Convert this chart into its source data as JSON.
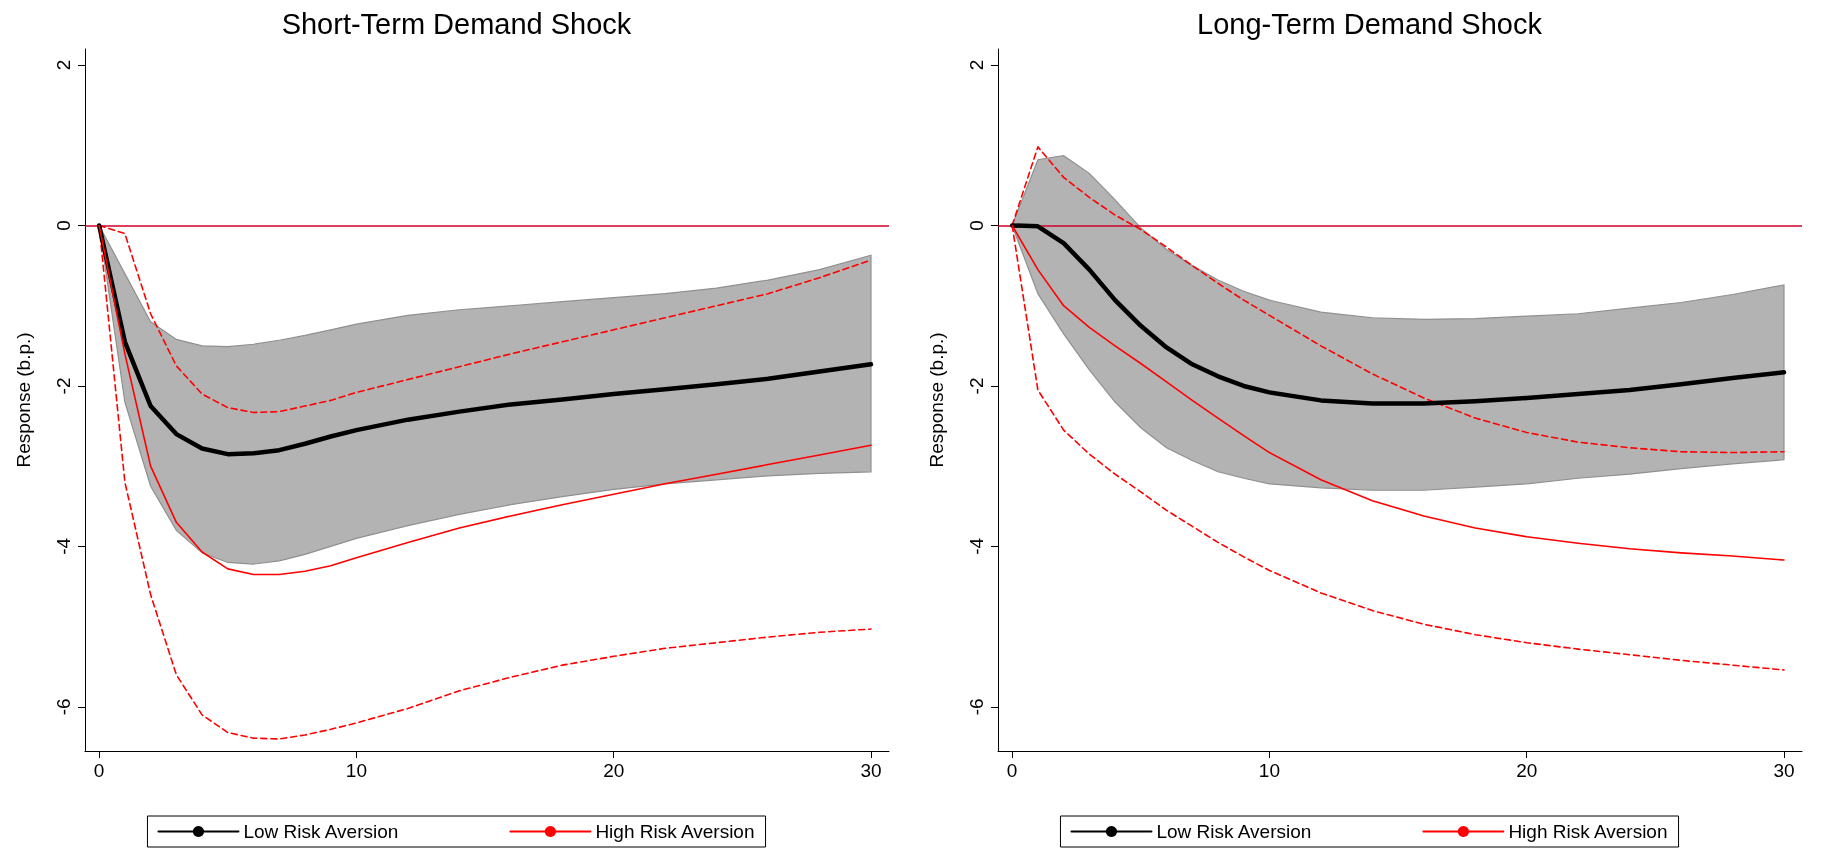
{
  "chart_data": [
    {
      "type": "line",
      "title": "Short-Term Demand Shock",
      "ylabel": "Response (b.p.)",
      "x": [
        0,
        1,
        2,
        3,
        4,
        5,
        6,
        7,
        8,
        9,
        10,
        12,
        14,
        16,
        18,
        20,
        22,
        24,
        26,
        28,
        30
      ],
      "xlim": [
        -0.55,
        30.7
      ],
      "xticks": [
        0,
        10,
        20,
        30
      ],
      "ylim": [
        -6.55,
        2.2
      ],
      "yticks": [
        -6,
        -4,
        -2,
        0,
        2
      ],
      "grid": false,
      "legend": "bottom",
      "marker": "none",
      "line_style": "solid",
      "ref_lines": [
        {
          "axis": "y",
          "value": 0,
          "color": "#d0002a"
        }
      ],
      "series": [
        {
          "name": "Low Risk Aversion",
          "color": "#000000",
          "values": [
            0,
            -1.45,
            -2.25,
            -2.6,
            -2.78,
            -2.85,
            -2.84,
            -2.8,
            -2.72,
            -2.63,
            -2.55,
            -2.42,
            -2.32,
            -2.23,
            -2.17,
            -2.1,
            -2.04,
            -1.98,
            -1.91,
            -1.82,
            -1.73
          ],
          "lower": [
            0,
            -2.2,
            -3.25,
            -3.8,
            -4.08,
            -4.2,
            -4.22,
            -4.18,
            -4.1,
            -4.0,
            -3.9,
            -3.74,
            -3.6,
            -3.48,
            -3.38,
            -3.29,
            -3.22,
            -3.17,
            -3.12,
            -3.09,
            -3.07
          ],
          "upper": [
            0,
            -0.6,
            -1.2,
            -1.42,
            -1.5,
            -1.51,
            -1.48,
            -1.43,
            -1.37,
            -1.3,
            -1.23,
            -1.12,
            -1.05,
            -1.0,
            -0.95,
            -0.9,
            -0.85,
            -0.78,
            -0.68,
            -0.55,
            -0.37
          ]
        },
        {
          "name": "High Risk Aversion",
          "color": "#ff0000",
          "values": [
            0,
            -1.6,
            -3.0,
            -3.7,
            -4.07,
            -4.28,
            -4.35,
            -4.35,
            -4.31,
            -4.24,
            -4.14,
            -3.95,
            -3.77,
            -3.62,
            -3.48,
            -3.35,
            -3.22,
            -3.1,
            -2.98,
            -2.86,
            -2.74
          ]
        },
        {
          "color": "#ff0000",
          "line_style": "dashed",
          "values": [
            0,
            -0.1,
            -1.1,
            -1.75,
            -2.1,
            -2.27,
            -2.33,
            -2.32,
            -2.25,
            -2.18,
            -2.08,
            -1.92,
            -1.76,
            -1.6,
            -1.45,
            -1.3,
            -1.15,
            -1.0,
            -0.85,
            -0.65,
            -0.43
          ]
        },
        {
          "color": "#ff0000",
          "line_style": "dashed",
          "values": [
            0,
            -3.2,
            -4.6,
            -5.6,
            -6.1,
            -6.32,
            -6.39,
            -6.4,
            -6.35,
            -6.28,
            -6.2,
            -6.02,
            -5.8,
            -5.63,
            -5.48,
            -5.37,
            -5.27,
            -5.2,
            -5.13,
            -5.07,
            -5.03
          ]
        }
      ]
    },
    {
      "type": "line",
      "title": "Long-Term Demand Shock",
      "ylabel": "Response (b.p.)",
      "x": [
        0,
        1,
        2,
        3,
        4,
        5,
        6,
        7,
        8,
        9,
        10,
        12,
        14,
        16,
        18,
        20,
        22,
        24,
        26,
        28,
        30
      ],
      "xlim": [
        -0.55,
        30.7
      ],
      "xticks": [
        0,
        10,
        20,
        30
      ],
      "ylim": [
        -6.55,
        2.2
      ],
      "yticks": [
        -6,
        -4,
        -2,
        0,
        2
      ],
      "grid": false,
      "legend": "bottom",
      "marker": "none",
      "line_style": "solid",
      "ref_lines": [
        {
          "axis": "y",
          "value": 0,
          "color": "#d0002a"
        }
      ],
      "series": [
        {
          "name": "Low Risk Aversion",
          "color": "#000000",
          "values": [
            0,
            -0.01,
            -0.22,
            -0.55,
            -0.93,
            -1.25,
            -1.52,
            -1.73,
            -1.88,
            -2.0,
            -2.08,
            -2.18,
            -2.22,
            -2.22,
            -2.19,
            -2.15,
            -2.1,
            -2.05,
            -1.98,
            -1.9,
            -1.83
          ],
          "lower": [
            0,
            -0.85,
            -1.35,
            -1.8,
            -2.2,
            -2.52,
            -2.77,
            -2.93,
            -3.07,
            -3.15,
            -3.22,
            -3.27,
            -3.3,
            -3.3,
            -3.26,
            -3.22,
            -3.15,
            -3.1,
            -3.03,
            -2.97,
            -2.92
          ],
          "upper": [
            0,
            0.82,
            0.87,
            0.65,
            0.32,
            -0.03,
            -0.3,
            -0.5,
            -0.68,
            -0.82,
            -0.93,
            -1.08,
            -1.15,
            -1.17,
            -1.16,
            -1.13,
            -1.1,
            -1.03,
            -0.96,
            -0.86,
            -0.74
          ]
        },
        {
          "name": "High Risk Aversion",
          "color": "#ff0000",
          "values": [
            0,
            -0.55,
            -1.0,
            -1.27,
            -1.5,
            -1.72,
            -1.95,
            -2.18,
            -2.4,
            -2.62,
            -2.83,
            -3.17,
            -3.43,
            -3.62,
            -3.77,
            -3.88,
            -3.96,
            -4.03,
            -4.08,
            -4.12,
            -4.17
          ]
        },
        {
          "color": "#ff0000",
          "line_style": "dashed",
          "values": [
            0,
            0.98,
            0.6,
            0.35,
            0.13,
            -0.05,
            -0.27,
            -0.5,
            -0.72,
            -0.93,
            -1.12,
            -1.5,
            -1.85,
            -2.15,
            -2.4,
            -2.58,
            -2.7,
            -2.77,
            -2.82,
            -2.83,
            -2.82
          ]
        },
        {
          "color": "#ff0000",
          "line_style": "dashed",
          "values": [
            0,
            -2.05,
            -2.55,
            -2.85,
            -3.1,
            -3.32,
            -3.55,
            -3.75,
            -3.95,
            -4.13,
            -4.3,
            -4.58,
            -4.8,
            -4.97,
            -5.1,
            -5.2,
            -5.28,
            -5.35,
            -5.42,
            -5.48,
            -5.54
          ]
        }
      ]
    }
  ]
}
